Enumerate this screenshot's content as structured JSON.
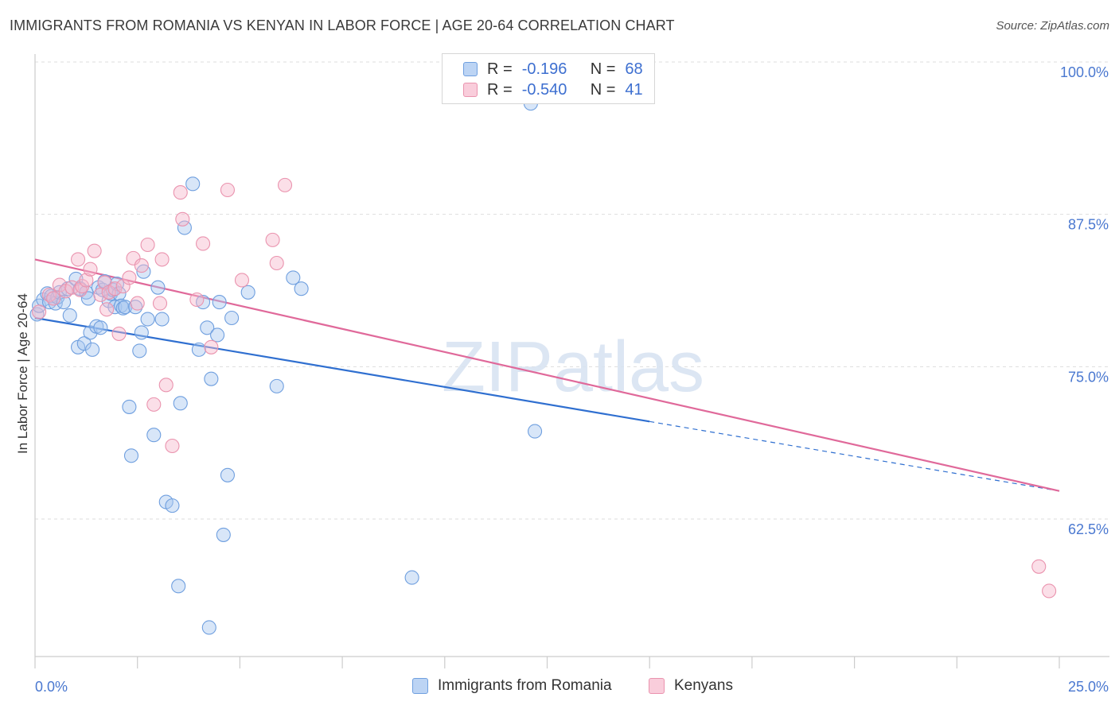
{
  "title": "IMMIGRANTS FROM ROMANIA VS KENYAN IN LABOR FORCE | AGE 20-64 CORRELATION CHART",
  "source": "Source: ZipAtlas.com",
  "watermark": "ZIPatlas",
  "legend": {
    "rows": [
      {
        "r_label": "R =",
        "r_value": "-0.196",
        "n_label": "N =",
        "n_value": "68"
      },
      {
        "r_label": "R =",
        "r_value": "-0.540",
        "n_label": "N =",
        "n_value": "41"
      }
    ]
  },
  "bottom_legend": [
    "Immigrants from Romania",
    "Kenyans"
  ],
  "colors": {
    "blue_fill": "#a9c8f0",
    "blue_stroke": "#6f9fdf",
    "blue_line": "#2f6fd0",
    "pink_fill": "#f6b8cb",
    "pink_stroke": "#ea93ae",
    "pink_line": "#e0699a",
    "axis_label": "#4a78d0",
    "grid": "#dddddd"
  },
  "chart_data": {
    "type": "scatter",
    "title": "IMMIGRANTS FROM ROMANIA VS KENYAN IN LABOR FORCE | AGE 20-64 CORRELATION CHART",
    "xlabel": "",
    "ylabel": "In Labor Force | Age 20-64",
    "xlim": [
      0,
      25
    ],
    "ylim": [
      53,
      101
    ],
    "x_ticks": [
      "0.0%",
      "25.0%"
    ],
    "y_ticks": [
      {
        "value": 100,
        "label": "100.0%"
      },
      {
        "value": 87.5,
        "label": "87.5%"
      },
      {
        "value": 75,
        "label": "75.0%"
      },
      {
        "value": 62.5,
        "label": "62.5%"
      }
    ],
    "grid": true,
    "legend_position": "top-center",
    "series": [
      {
        "name": "Immigrants from Romania",
        "color": "#6f9fdf",
        "points": [
          [
            0.05,
            79.3
          ],
          [
            0.1,
            80.0
          ],
          [
            0.2,
            80.5
          ],
          [
            0.3,
            81.0
          ],
          [
            0.35,
            80.3
          ],
          [
            0.4,
            80.8
          ],
          [
            0.5,
            80.2
          ],
          [
            0.55,
            80.7
          ],
          [
            0.6,
            81.1
          ],
          [
            0.7,
            80.3
          ],
          [
            0.8,
            81.4
          ],
          [
            0.85,
            79.2
          ],
          [
            1.0,
            82.2
          ],
          [
            1.05,
            76.6
          ],
          [
            1.1,
            81.4
          ],
          [
            1.2,
            76.9
          ],
          [
            1.25,
            81.1
          ],
          [
            1.3,
            80.6
          ],
          [
            1.35,
            77.8
          ],
          [
            1.4,
            76.4
          ],
          [
            1.5,
            78.3
          ],
          [
            1.55,
            81.5
          ],
          [
            1.6,
            78.2
          ],
          [
            1.65,
            81.3
          ],
          [
            1.7,
            82.0
          ],
          [
            1.8,
            80.4
          ],
          [
            1.85,
            81.0
          ],
          [
            1.9,
            81.3
          ],
          [
            1.95,
            79.9
          ],
          [
            2.0,
            81.8
          ],
          [
            2.05,
            81.0
          ],
          [
            2.1,
            80.0
          ],
          [
            2.15,
            79.8
          ],
          [
            2.2,
            79.9
          ],
          [
            2.3,
            71.7
          ],
          [
            2.35,
            67.7
          ],
          [
            2.45,
            79.9
          ],
          [
            2.55,
            76.3
          ],
          [
            2.6,
            77.8
          ],
          [
            2.65,
            82.8
          ],
          [
            2.75,
            78.9
          ],
          [
            2.9,
            69.4
          ],
          [
            3.0,
            81.5
          ],
          [
            3.1,
            78.9
          ],
          [
            3.2,
            63.9
          ],
          [
            3.35,
            63.6
          ],
          [
            3.5,
            57.0
          ],
          [
            3.55,
            72.0
          ],
          [
            3.65,
            86.4
          ],
          [
            3.85,
            90.0
          ],
          [
            4.0,
            76.4
          ],
          [
            4.1,
            80.3
          ],
          [
            4.2,
            78.2
          ],
          [
            4.25,
            53.6
          ],
          [
            4.3,
            74.0
          ],
          [
            4.45,
            77.6
          ],
          [
            4.5,
            80.3
          ],
          [
            4.6,
            61.2
          ],
          [
            4.7,
            66.1
          ],
          [
            4.8,
            79.0
          ],
          [
            5.2,
            81.1
          ],
          [
            5.9,
            73.4
          ],
          [
            6.3,
            82.3
          ],
          [
            6.5,
            81.4
          ],
          [
            9.2,
            57.7
          ],
          [
            12.0,
            99.6
          ],
          [
            12.1,
            96.6
          ],
          [
            12.2,
            69.7
          ]
        ]
      },
      {
        "name": "Kenyans",
        "color": "#ea93ae",
        "points": [
          [
            0.1,
            79.5
          ],
          [
            0.35,
            80.9
          ],
          [
            0.45,
            80.6
          ],
          [
            0.6,
            81.7
          ],
          [
            0.75,
            81.2
          ],
          [
            0.9,
            81.5
          ],
          [
            1.05,
            83.8
          ],
          [
            1.1,
            81.3
          ],
          [
            1.15,
            81.6
          ],
          [
            1.25,
            82.1
          ],
          [
            1.35,
            83.0
          ],
          [
            1.45,
            84.5
          ],
          [
            1.6,
            80.9
          ],
          [
            1.7,
            81.9
          ],
          [
            1.75,
            79.7
          ],
          [
            1.8,
            81.1
          ],
          [
            1.95,
            81.4
          ],
          [
            2.05,
            77.7
          ],
          [
            2.15,
            81.6
          ],
          [
            2.3,
            82.3
          ],
          [
            2.4,
            83.9
          ],
          [
            2.5,
            80.2
          ],
          [
            2.6,
            83.3
          ],
          [
            2.75,
            85.0
          ],
          [
            2.9,
            71.9
          ],
          [
            3.05,
            80.2
          ],
          [
            3.1,
            83.8
          ],
          [
            3.2,
            73.5
          ],
          [
            3.35,
            68.5
          ],
          [
            3.55,
            89.3
          ],
          [
            3.6,
            87.1
          ],
          [
            3.95,
            80.5
          ],
          [
            4.1,
            85.1
          ],
          [
            4.3,
            76.6
          ],
          [
            4.7,
            89.5
          ],
          [
            5.05,
            82.1
          ],
          [
            5.8,
            85.4
          ],
          [
            5.9,
            83.5
          ],
          [
            6.1,
            89.9
          ],
          [
            24.5,
            58.6
          ],
          [
            24.75,
            56.6
          ]
        ]
      }
    ],
    "trendlines": [
      {
        "series": "Immigrants from Romania",
        "x": [
          0,
          15
        ],
        "y": [
          79.0,
          70.5
        ],
        "dashed_extension_to": [
          25,
          64.8
        ]
      },
      {
        "series": "Kenyans",
        "x": [
          0,
          25
        ],
        "y": [
          83.8,
          64.8
        ]
      }
    ]
  }
}
